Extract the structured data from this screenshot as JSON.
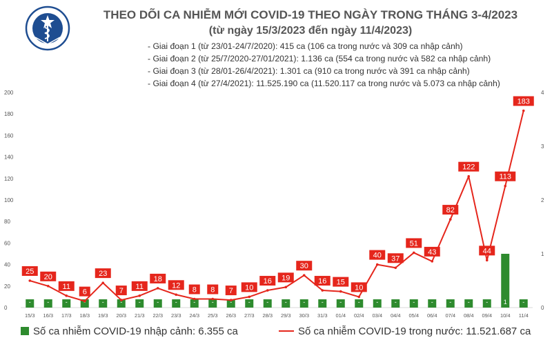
{
  "logo": {
    "text_top": "BỘ Y TẾ",
    "text_bottom": "MINISTRY OF HEALTH"
  },
  "title": "THEO DÕI CA NHIỄM MỚI COVID-19 THEO NGÀY TRONG THÁNG 3-4/2023",
  "subtitle": "(từ ngày 15/3/2023 đến ngày 11/4/2023)",
  "phases": [
    "- Giai đoạn 1 (từ 23/01-24/7/2020): 415 ca (106 ca trong nước và 309 ca nhập cảnh)",
    "- Giai đoạn 2 (từ 25/7/2020-27/01/2021): 1.136 ca (554 ca trong nước và 582 ca nhập cảnh)",
    "- Giai đoạn 3 (từ 28/01-26/4/2021): 1.301 ca (910 ca trong nước và 391 ca nhập cảnh)",
    "- Giai đoạn 4 (từ 27/4/2021): 11.525.190 ca (11.520.117 ca trong nước và 5.073 ca nhập cảnh)"
  ],
  "colors": {
    "bar": "#2e8b2e",
    "line": "#e5261c",
    "label_bg": "#e5261c",
    "label_text": "#ffffff"
  },
  "chart_data": {
    "type": "bar+line",
    "categories": [
      "15/3",
      "16/3",
      "17/3",
      "18/3",
      "19/3",
      "20/3",
      "21/3",
      "22/3",
      "23/3",
      "24/3",
      "25/3",
      "26/3",
      "27/3",
      "28/3",
      "29/3",
      "30/3",
      "31/3",
      "01/4",
      "02/4",
      "03/4",
      "04/4",
      "05/4",
      "06/4",
      "07/4",
      "08/4",
      "09/4",
      "10/4",
      "11/4"
    ],
    "series": [
      {
        "name": "Số ca nhiễm COVID-19 nhập cảnh: 6.355 ca",
        "type": "bar",
        "axis": "right",
        "values": [
          0,
          0,
          0,
          0,
          0,
          0,
          0,
          0,
          0,
          0,
          0,
          0,
          0,
          0,
          0,
          0,
          0,
          0,
          0,
          0,
          0,
          0,
          0,
          0,
          0,
          0,
          1,
          0
        ],
        "labels": [
          "-",
          "-",
          "-",
          "-",
          "-",
          "-",
          "-",
          "-",
          "-",
          "-",
          "-",
          "-",
          "-",
          "-",
          "-",
          "-",
          "-",
          "-",
          "-",
          "-",
          "-",
          "-",
          "-",
          "-",
          "-",
          "-",
          "1",
          "-"
        ]
      },
      {
        "name": "Số ca nhiễm COVID-19 trong nước: 11.521.687 ca",
        "type": "line",
        "axis": "left",
        "values": [
          25,
          20,
          11,
          6,
          23,
          7,
          11,
          18,
          12,
          8,
          8,
          7,
          10,
          16,
          19,
          30,
          16,
          15,
          10,
          40,
          37,
          51,
          43,
          82,
          122,
          44,
          113,
          183
        ]
      }
    ],
    "y_left": {
      "min": 0,
      "max": 200,
      "ticks": [
        "0",
        "20",
        "40",
        "60",
        "80",
        "100",
        "120",
        "140",
        "160",
        "180",
        "200"
      ]
    },
    "y_right": {
      "min": 0,
      "max": 4,
      "ticks": [
        "0",
        "1",
        "2",
        "3",
        "4"
      ]
    },
    "grid": false,
    "legend_position": "bottom"
  }
}
